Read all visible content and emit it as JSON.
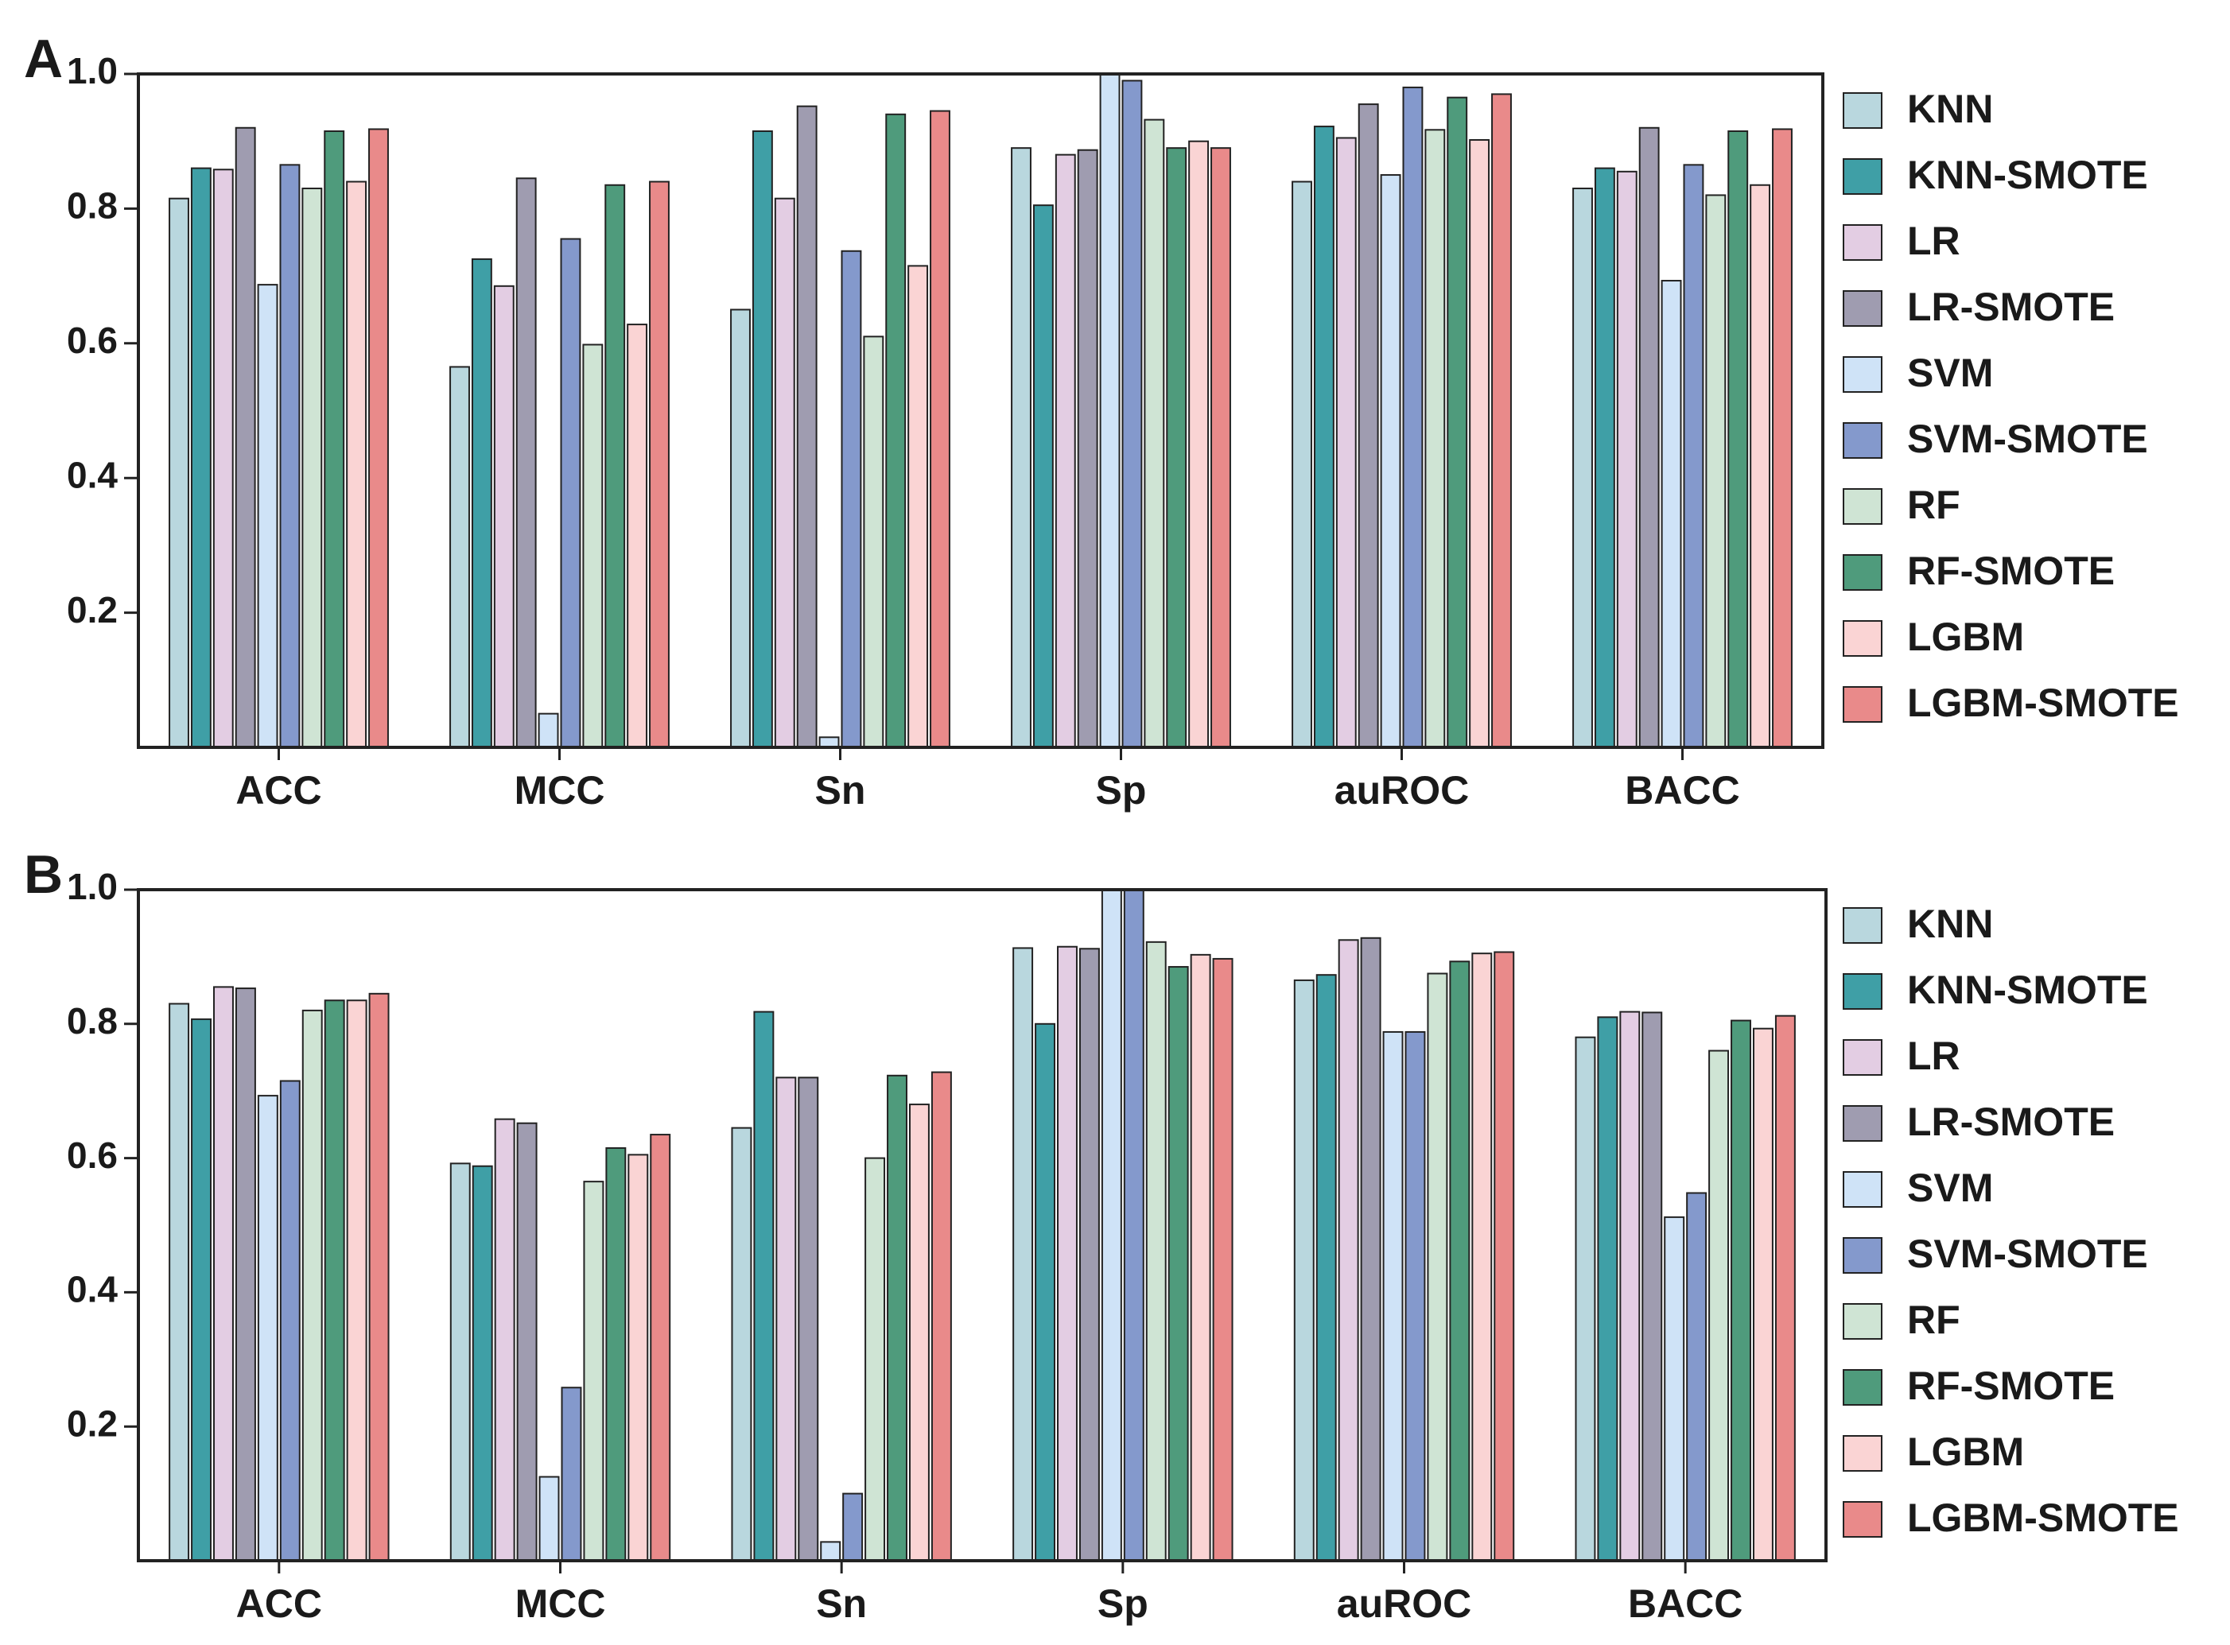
{
  "chart_data": [
    {
      "type": "bar",
      "panel_label": "A",
      "categories": [
        "ACC",
        "MCC",
        "Sn",
        "Sp",
        "auROC",
        "BACC"
      ],
      "series": [
        {
          "name": "KNN",
          "color": "#b9d7de",
          "values": [
            0.815,
            0.565,
            0.65,
            0.89,
            0.84,
            0.83
          ]
        },
        {
          "name": "KNN-SMOTE",
          "color": "#3f9fa6",
          "values": [
            0.86,
            0.725,
            0.915,
            0.805,
            0.922,
            0.86
          ]
        },
        {
          "name": "LR",
          "color": "#e3cde3",
          "values": [
            0.858,
            0.685,
            0.815,
            0.88,
            0.905,
            0.855
          ]
        },
        {
          "name": "LR-SMOTE",
          "color": "#9f9cb0",
          "values": [
            0.92,
            0.845,
            0.952,
            0.887,
            0.955,
            0.92
          ]
        },
        {
          "name": "SVM",
          "color": "#cfe3f7",
          "values": [
            0.687,
            0.05,
            0.015,
            1.0,
            0.85,
            0.693
          ]
        },
        {
          "name": "SVM-SMOTE",
          "color": "#8499cc",
          "values": [
            0.865,
            0.755,
            0.737,
            0.99,
            0.98,
            0.865
          ]
        },
        {
          "name": "RF",
          "color": "#cfe4d4",
          "values": [
            0.83,
            0.598,
            0.61,
            0.932,
            0.917,
            0.82
          ]
        },
        {
          "name": "RF-SMOTE",
          "color": "#4f9b7c",
          "values": [
            0.915,
            0.835,
            0.94,
            0.89,
            0.965,
            0.915
          ]
        },
        {
          "name": "LGBM",
          "color": "#fad4d4",
          "values": [
            0.84,
            0.628,
            0.715,
            0.9,
            0.902,
            0.835
          ]
        },
        {
          "name": "LGBM-SMOTE",
          "color": "#e98a8a",
          "values": [
            0.918,
            0.84,
            0.945,
            0.89,
            0.97,
            0.918
          ]
        }
      ],
      "ylim": [
        0,
        1
      ],
      "yticks": [
        0.2,
        0.4,
        0.6,
        0.8,
        {
          "value": 1,
          "label": "1.0"
        }
      ],
      "legend": "right"
    },
    {
      "type": "bar",
      "panel_label": "B",
      "categories": [
        "ACC",
        "MCC",
        "Sn",
        "Sp",
        "auROC",
        "BACC"
      ],
      "series": [
        {
          "name": "KNN",
          "color": "#b9d7de",
          "values": [
            0.83,
            0.592,
            0.645,
            0.913,
            0.865,
            0.78
          ]
        },
        {
          "name": "KNN-SMOTE",
          "color": "#3f9fa6",
          "values": [
            0.807,
            0.588,
            0.818,
            0.8,
            0.873,
            0.81
          ]
        },
        {
          "name": "LR",
          "color": "#e3cde3",
          "values": [
            0.855,
            0.658,
            0.72,
            0.915,
            0.925,
            0.818
          ]
        },
        {
          "name": "LR-SMOTE",
          "color": "#9f9cb0",
          "values": [
            0.853,
            0.652,
            0.72,
            0.912,
            0.928,
            0.817
          ]
        },
        {
          "name": "SVM",
          "color": "#cfe3f7",
          "values": [
            0.693,
            0.125,
            0.028,
            1.0,
            0.788,
            0.512
          ]
        },
        {
          "name": "SVM-SMOTE",
          "color": "#8499cc",
          "values": [
            0.715,
            0.258,
            0.1,
            1.0,
            0.788,
            0.548
          ]
        },
        {
          "name": "RF",
          "color": "#cfe4d4",
          "values": [
            0.82,
            0.565,
            0.6,
            0.922,
            0.875,
            0.76
          ]
        },
        {
          "name": "RF-SMOTE",
          "color": "#4f9b7c",
          "values": [
            0.835,
            0.615,
            0.723,
            0.885,
            0.893,
            0.805
          ]
        },
        {
          "name": "LGBM",
          "color": "#fad4d4",
          "values": [
            0.835,
            0.605,
            0.68,
            0.903,
            0.905,
            0.793
          ]
        },
        {
          "name": "LGBM-SMOTE",
          "color": "#e98a8a",
          "values": [
            0.845,
            0.635,
            0.728,
            0.897,
            0.907,
            0.812
          ]
        }
      ],
      "ylim": [
        0,
        1
      ],
      "yticks": [
        0.2,
        0.4,
        0.6,
        0.8,
        {
          "value": 1,
          "label": "1.0"
        }
      ],
      "legend": "right"
    }
  ]
}
